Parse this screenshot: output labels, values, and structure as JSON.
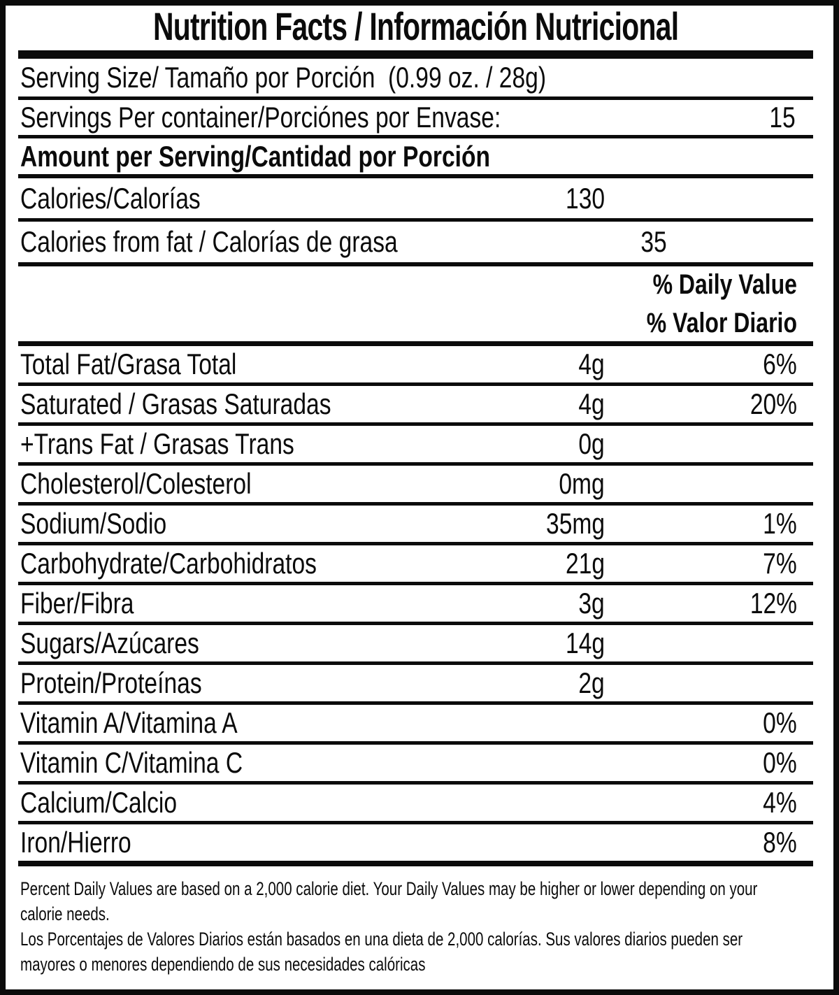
{
  "label": {
    "title": "Nutrition Facts / Información Nutricional",
    "serving_size_line": "Serving Size/ Tamaño por Porción  (0.99 oz. / 28g)",
    "servings_per_container": {
      "label": "Servings Per container/Porciónes por Envase:",
      "value": "15"
    },
    "amount_per_serving_header": "Amount per Serving/Cantidad por Porción",
    "calories": {
      "label": "Calories/Calorías",
      "value": "130"
    },
    "calories_from_fat": {
      "label": "Calories from fat / Calorías de grasa",
      "value": "35"
    },
    "daily_value_header_en": "% Daily Value",
    "daily_value_header_es": "% Valor Diario",
    "nutrients": [
      {
        "label": "Total Fat/Grasa Total",
        "amount": "4g",
        "dv": "6%"
      },
      {
        "label": "Saturated / Grasas Saturadas",
        "amount": "4g",
        "dv": "20%"
      },
      {
        "label": "+Trans Fat / Grasas Trans",
        "amount": "0g",
        "dv": ""
      },
      {
        "label": "Cholesterol/Colesterol",
        "amount": "0mg",
        "dv": ""
      },
      {
        "label": "Sodium/Sodio",
        "amount": "35mg",
        "dv": "1%"
      },
      {
        "label": "Carbohydrate/Carbohidratos",
        "amount": "21g",
        "dv": "7%"
      },
      {
        "label": "Fiber/Fibra",
        "amount": "3g",
        "dv": "12%"
      },
      {
        "label": "Sugars/Azúcares",
        "amount": "14g",
        "dv": ""
      },
      {
        "label": "Protein/Proteínas",
        "amount": "2g",
        "dv": ""
      },
      {
        "label": "Vitamin A/Vitamina A",
        "amount": "",
        "dv": "0%"
      },
      {
        "label": "Vitamin C/Vitamina C",
        "amount": "",
        "dv": "0%"
      },
      {
        "label": "Calcium/Calcio",
        "amount": "",
        "dv": "4%"
      },
      {
        "label": "Iron/Hierro",
        "amount": "",
        "dv": "8%"
      }
    ],
    "footnote_lines": [
      "Percent Daily Values are based on a 2,000 calorie diet. Your Daily Values may be higher or lower depending on your",
      "calorie needs.",
      "Los Porcentajes de Valores Diarios están basados en una dieta de 2,000 calorías. Sus valores diarios pueden ser",
      "mayores o menores dependiendo de sus necesidades calóricas"
    ],
    "colors": {
      "ink": "#0b0b0b",
      "background": "#ffffff"
    }
  }
}
